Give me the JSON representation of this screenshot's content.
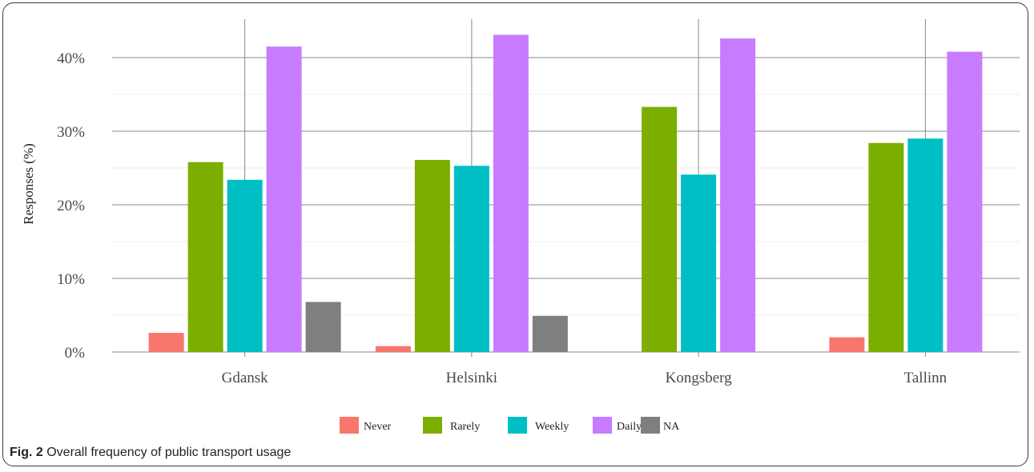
{
  "caption": {
    "label": "Fig. 2",
    "text": "Overall frequency of public transport usage"
  },
  "chart_data": {
    "type": "bar",
    "categories": [
      "Gdansk",
      "Helsinki",
      "Kongsberg",
      "Tallinn"
    ],
    "series": [
      {
        "name": "Never",
        "color": "#F8766D",
        "values": [
          2.6,
          0.8,
          0,
          2.0
        ]
      },
      {
        "name": "Rarely",
        "color": "#7CAE00",
        "values": [
          25.8,
          26.1,
          33.3,
          28.4
        ]
      },
      {
        "name": "Weekly",
        "color": "#00BFC4",
        "values": [
          23.4,
          25.3,
          24.1,
          29.0
        ]
      },
      {
        "name": "Daily",
        "color": "#C77CFF",
        "values": [
          41.5,
          43.1,
          42.6,
          40.8
        ]
      },
      {
        "name": "NA",
        "color": "#7F7F7F",
        "values": [
          6.8,
          4.9,
          0,
          0
        ]
      }
    ],
    "ylabel": "Responses (%)",
    "ylim": [
      0,
      45
    ],
    "yticks": [
      0,
      10,
      20,
      30,
      40
    ],
    "ytick_labels": [
      "0%",
      "10%",
      "20%",
      "30%",
      "40%"
    ],
    "grid": true,
    "legend_position": "bottom"
  }
}
